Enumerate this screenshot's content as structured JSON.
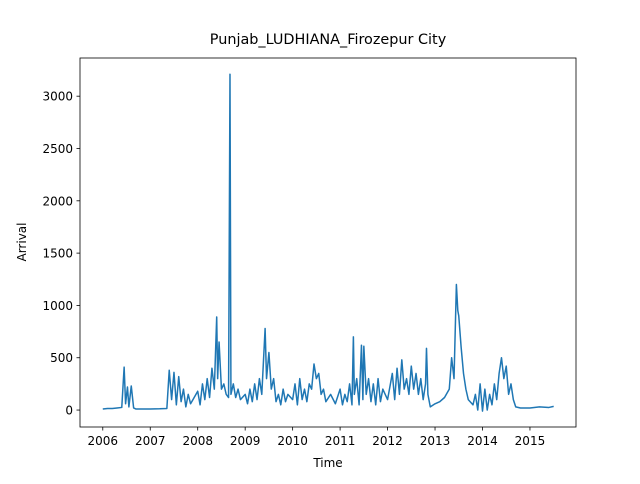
{
  "chart_data": {
    "type": "line",
    "title": "Punjab_LUDHIANA_Firozepur City",
    "x_label": "Time",
    "y_label": "Arrival",
    "x": [
      2006.0,
      2006.1,
      2006.2,
      2006.3,
      2006.4,
      2006.45,
      2006.48,
      2006.52,
      2006.55,
      2006.6,
      2006.65,
      2006.7,
      2006.8,
      2007.0,
      2007.2,
      2007.35,
      2007.4,
      2007.45,
      2007.5,
      2007.55,
      2007.6,
      2007.65,
      2007.7,
      2007.75,
      2007.8,
      2007.85,
      2007.9,
      2008.0,
      2008.05,
      2008.1,
      2008.15,
      2008.2,
      2008.25,
      2008.3,
      2008.35,
      2008.4,
      2008.42,
      2008.45,
      2008.5,
      2008.55,
      2008.6,
      2008.65,
      2008.68,
      2008.7,
      2008.75,
      2008.8,
      2008.85,
      2008.9,
      2009.0,
      2009.05,
      2009.1,
      2009.15,
      2009.2,
      2009.25,
      2009.3,
      2009.35,
      2009.42,
      2009.45,
      2009.5,
      2009.55,
      2009.6,
      2009.65,
      2009.7,
      2009.75,
      2009.8,
      2009.85,
      2009.9,
      2010.0,
      2010.05,
      2010.1,
      2010.15,
      2010.2,
      2010.25,
      2010.3,
      2010.35,
      2010.4,
      2010.45,
      2010.5,
      2010.55,
      2010.6,
      2010.65,
      2010.7,
      2010.8,
      2010.9,
      2011.0,
      2011.05,
      2011.1,
      2011.15,
      2011.2,
      2011.25,
      2011.28,
      2011.3,
      2011.35,
      2011.4,
      2011.45,
      2011.48,
      2011.5,
      2011.55,
      2011.6,
      2011.65,
      2011.7,
      2011.75,
      2011.8,
      2011.85,
      2011.9,
      2012.0,
      2012.1,
      2012.15,
      2012.2,
      2012.25,
      2012.3,
      2012.35,
      2012.4,
      2012.45,
      2012.5,
      2012.55,
      2012.6,
      2012.65,
      2012.7,
      2012.75,
      2012.8,
      2012.82,
      2012.85,
      2012.9,
      2013.0,
      2013.1,
      2013.2,
      2013.3,
      2013.35,
      2013.4,
      2013.45,
      2013.48,
      2013.5,
      2013.55,
      2013.6,
      2013.65,
      2013.7,
      2013.8,
      2013.85,
      2013.9,
      2013.95,
      2014.0,
      2014.05,
      2014.1,
      2014.15,
      2014.2,
      2014.25,
      2014.3,
      2014.35,
      2014.4,
      2014.45,
      2014.5,
      2014.55,
      2014.6,
      2014.65,
      2014.7,
      2014.8,
      2015.0,
      2015.2,
      2015.4,
      2015.5
    ],
    "series": [
      {
        "color": "#1f77b4",
        "values": [
          10,
          15,
          15,
          20,
          25,
          410,
          60,
          220,
          30,
          230,
          20,
          10,
          10,
          10,
          12,
          15,
          380,
          100,
          360,
          50,
          320,
          80,
          200,
          30,
          150,
          60,
          100,
          180,
          50,
          250,
          100,
          300,
          120,
          400,
          200,
          890,
          300,
          650,
          200,
          250,
          150,
          120,
          3210,
          150,
          250,
          120,
          200,
          100,
          150,
          60,
          200,
          80,
          250,
          100,
          300,
          150,
          780,
          300,
          550,
          200,
          300,
          80,
          150,
          50,
          200,
          80,
          150,
          100,
          250,
          50,
          300,
          100,
          200,
          80,
          250,
          200,
          440,
          300,
          350,
          150,
          200,
          80,
          150,
          60,
          200,
          50,
          150,
          80,
          250,
          50,
          700,
          150,
          300,
          50,
          620,
          100,
          610,
          150,
          300,
          80,
          250,
          50,
          300,
          80,
          200,
          100,
          350,
          100,
          400,
          150,
          480,
          200,
          300,
          150,
          420,
          200,
          350,
          150,
          300,
          100,
          250,
          590,
          150,
          30,
          60,
          80,
          120,
          200,
          500,
          300,
          1200,
          950,
          900,
          600,
          350,
          200,
          100,
          50,
          150,
          0,
          250,
          -10,
          200,
          0,
          150,
          50,
          250,
          100,
          350,
          500,
          300,
          420,
          150,
          250,
          100,
          30,
          20,
          20,
          30,
          25,
          35
        ]
      }
    ],
    "xlim": [
      2005.52,
      2015.97
    ],
    "xticks": [
      2006,
      2007,
      2008,
      2009,
      2010,
      2011,
      2012,
      2013,
      2014,
      2015
    ],
    "ylim": [
      -162,
      3365
    ],
    "yticks": [
      0,
      500,
      1000,
      1500,
      2000,
      2500,
      3000
    ]
  }
}
